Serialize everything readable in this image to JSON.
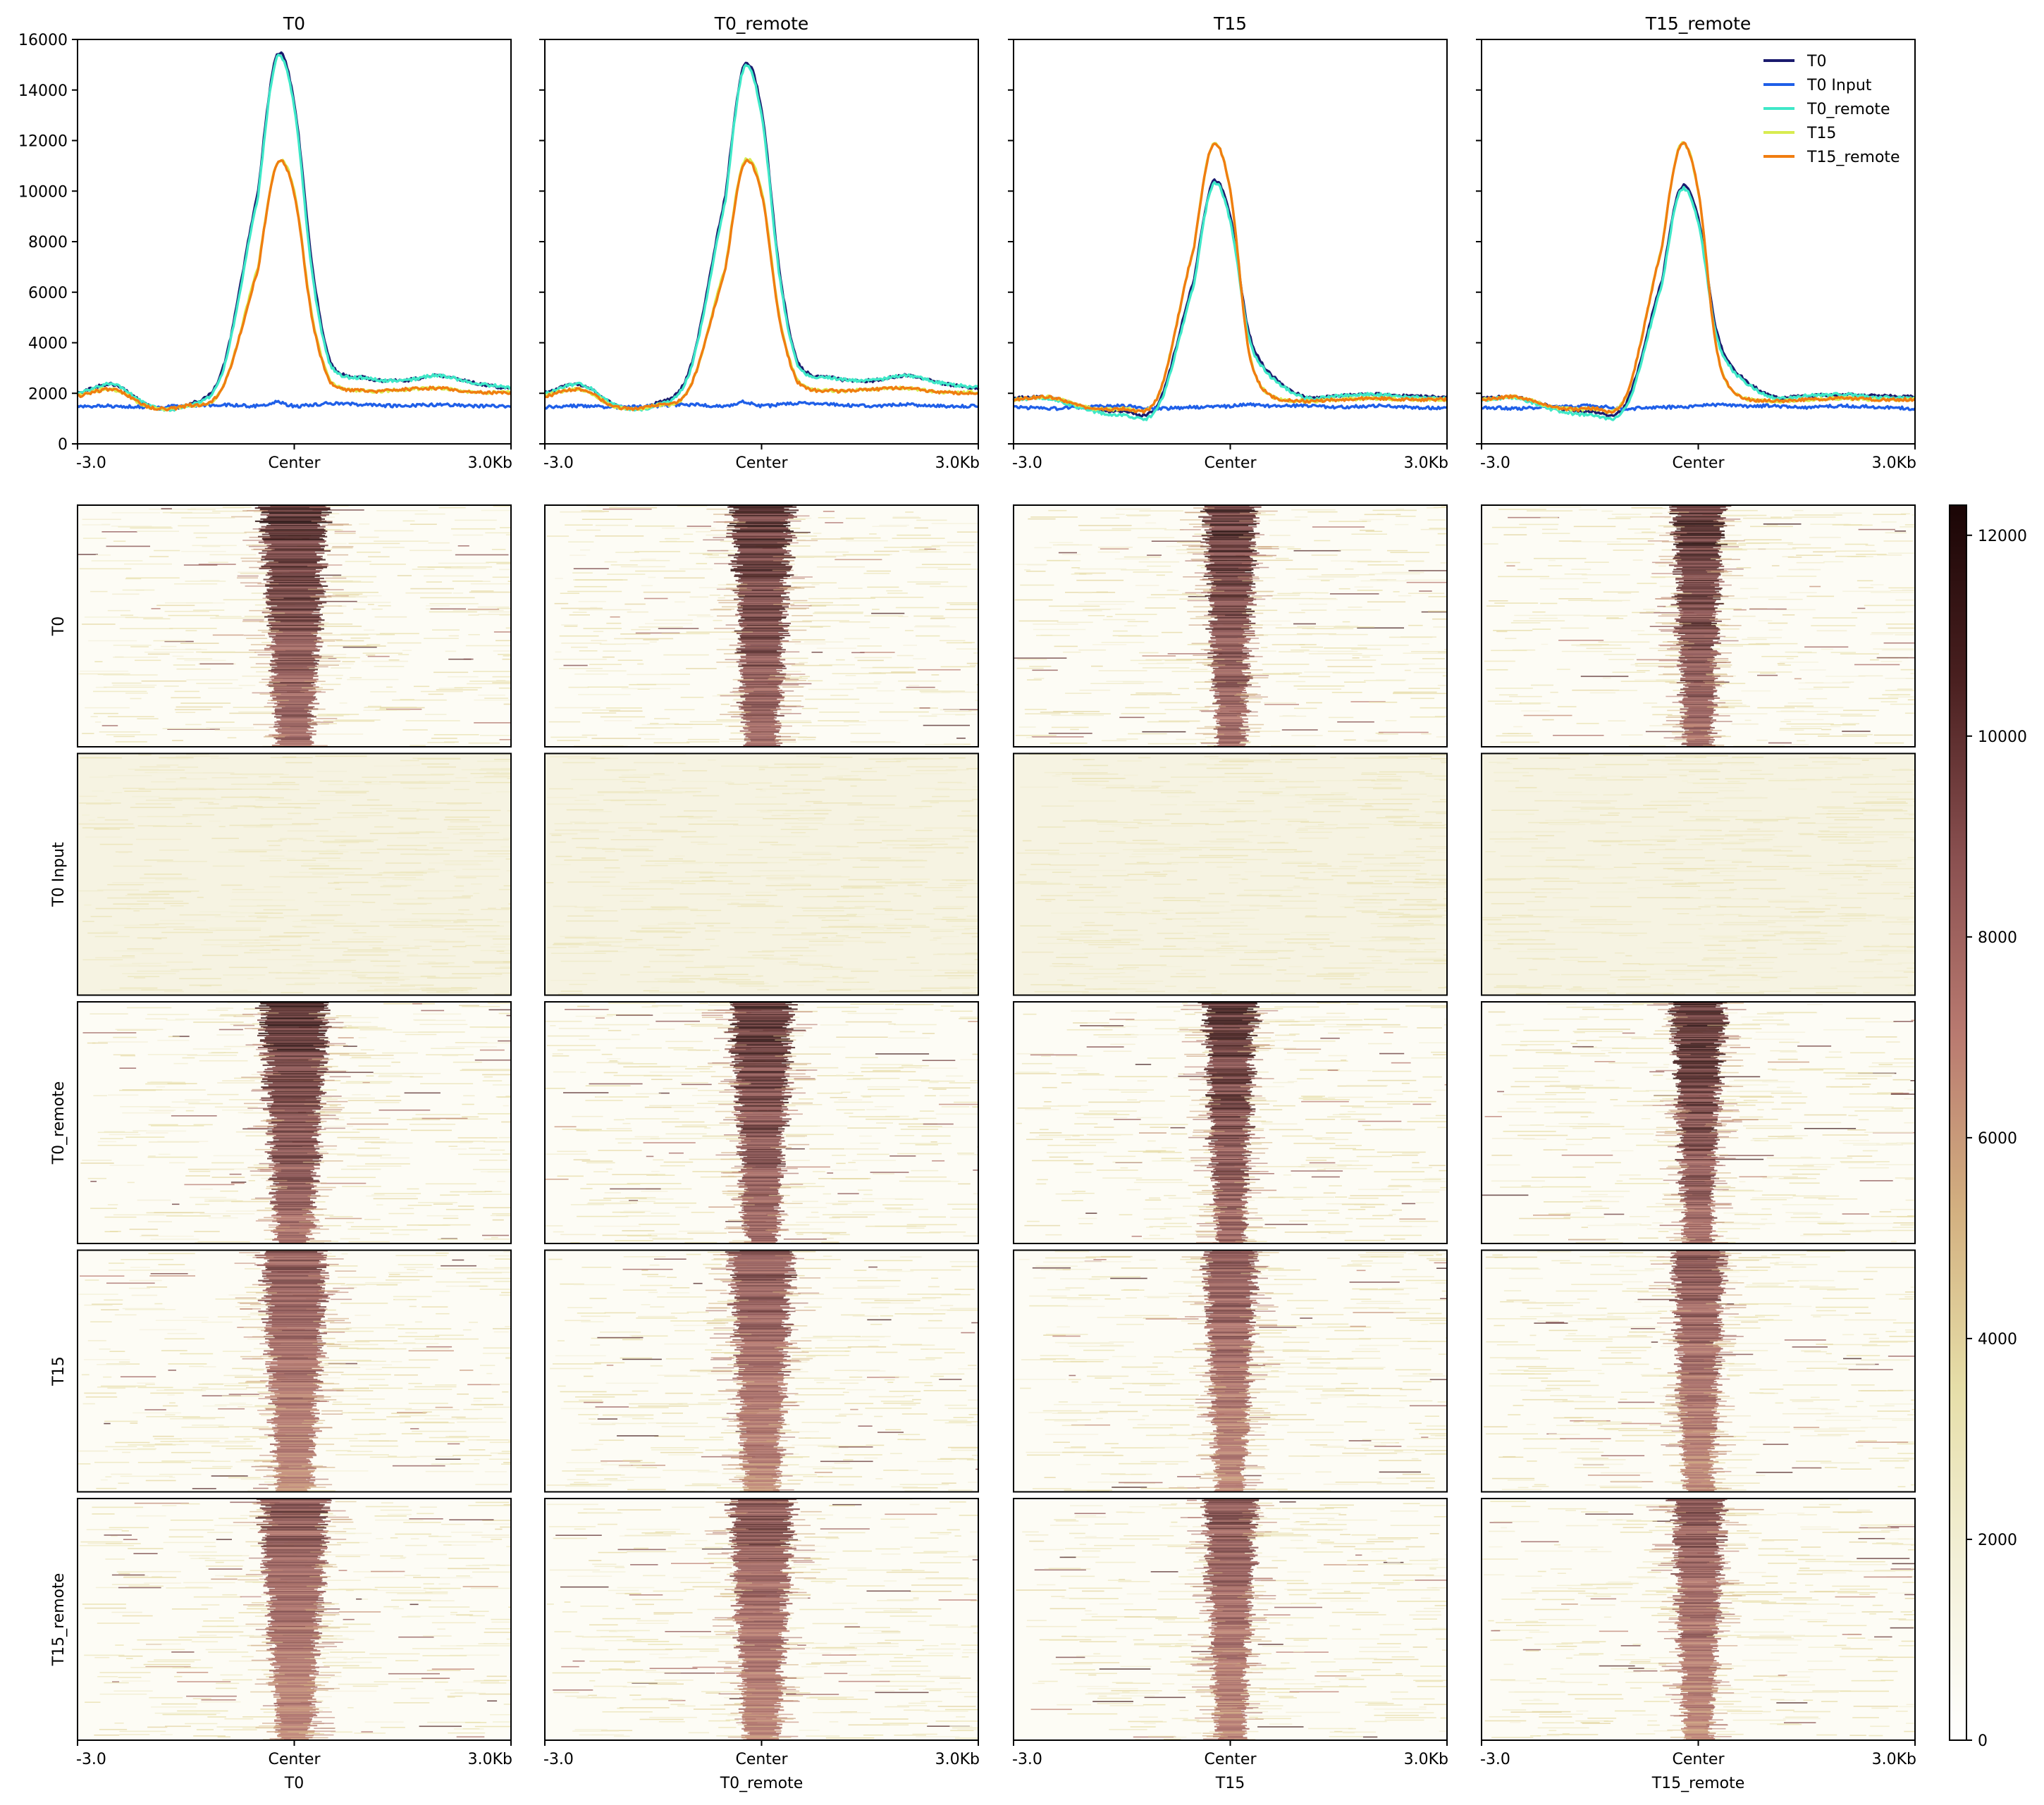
{
  "chart_data": [
    {
      "type": "line",
      "panels": [
        "T0",
        "T0_remote",
        "T15",
        "T15_remote"
      ],
      "x_tick_labels": [
        "-3.0",
        "Center",
        "3.0Kb"
      ],
      "x_range_kb": [
        -3.0,
        3.0
      ],
      "ylim": [
        0,
        16000
      ],
      "y_ticks": [
        0,
        2000,
        4000,
        6000,
        8000,
        10000,
        12000,
        14000,
        16000
      ],
      "legend": {
        "placement": "top-right",
        "entries": [
          "T0",
          "T0 Input",
          "T0_remote",
          "T15",
          "T15_remote"
        ]
      },
      "x_kb": [
        -3.0,
        -2.5,
        -2.0,
        -1.5,
        -1.0,
        -0.5,
        -0.25,
        0.0,
        0.25,
        0.5,
        1.0,
        1.5,
        2.0,
        2.5,
        3.0
      ],
      "series_by_panel": [
        {
          "panel": "T0",
          "series": [
            {
              "name": "T0",
              "color": "#1a1a6e",
              "values": [
                2050,
                2350,
                1500,
                1550,
                2900,
                10000,
                15300,
                13500,
                7000,
                3200,
                2600,
                2500,
                2700,
                2400,
                2200
              ]
            },
            {
              "name": "T0 Input",
              "color": "#1f5fe8",
              "values": [
                1450,
                1500,
                1450,
                1500,
                1550,
                1500,
                1650,
                1500,
                1550,
                1600,
                1550,
                1500,
                1550,
                1500,
                1500
              ]
            },
            {
              "name": "T0_remote",
              "color": "#3fe8c8",
              "values": [
                2000,
                2350,
                1500,
                1500,
                2800,
                9800,
                15200,
                13300,
                6700,
                3100,
                2600,
                2500,
                2700,
                2400,
                2250
              ]
            },
            {
              "name": "T15",
              "color": "#d8ec50",
              "values": [
                1950,
                2150,
                1450,
                1500,
                2200,
                7000,
                11000,
                10000,
                5000,
                2500,
                2100,
                2150,
                2200,
                2050,
                2050
              ]
            },
            {
              "name": "T15_remote",
              "color": "#f07d10",
              "values": [
                1900,
                2150,
                1450,
                1500,
                2200,
                6900,
                11000,
                9900,
                4900,
                2450,
                2100,
                2150,
                2200,
                2050,
                2000
              ]
            }
          ]
        },
        {
          "panel": "T0_remote",
          "series": [
            {
              "name": "T0",
              "color": "#1a1a6e",
              "values": [
                2050,
                2350,
                1500,
                1550,
                2900,
                9800,
                14900,
                13200,
                6800,
                3200,
                2600,
                2500,
                2700,
                2400,
                2200
              ]
            },
            {
              "name": "T0 Input",
              "color": "#1f5fe8",
              "values": [
                1450,
                1500,
                1450,
                1500,
                1550,
                1500,
                1650,
                1500,
                1550,
                1600,
                1550,
                1500,
                1550,
                1500,
                1500
              ]
            },
            {
              "name": "T0_remote",
              "color": "#3fe8c8",
              "values": [
                2000,
                2350,
                1500,
                1500,
                2800,
                9600,
                14800,
                13000,
                6600,
                3100,
                2600,
                2500,
                2700,
                2400,
                2250
              ]
            },
            {
              "name": "T15",
              "color": "#d8ec50",
              "values": [
                1950,
                2150,
                1450,
                1500,
                2200,
                7000,
                11100,
                10000,
                5000,
                2500,
                2100,
                2150,
                2200,
                2050,
                2050
              ]
            },
            {
              "name": "T15_remote",
              "color": "#f07d10",
              "values": [
                1900,
                2150,
                1450,
                1500,
                2200,
                6900,
                11000,
                9900,
                4900,
                2450,
                2100,
                2150,
                2200,
                2050,
                2000
              ]
            }
          ]
        },
        {
          "panel": "T15",
          "series": [
            {
              "name": "T0",
              "color": "#1a1a6e",
              "values": [
                1800,
                1850,
                1450,
                1300,
                1600,
                6500,
                10300,
                9000,
                4500,
                2900,
                1900,
                1900,
                1950,
                1900,
                1850
              ]
            },
            {
              "name": "T0 Input",
              "color": "#1f5fe8",
              "values": [
                1450,
                1400,
                1450,
                1500,
                1400,
                1450,
                1450,
                1500,
                1550,
                1500,
                1500,
                1450,
                1500,
                1450,
                1400
              ]
            },
            {
              "name": "T0_remote",
              "color": "#3fe8c8",
              "values": [
                1750,
                1800,
                1350,
                1150,
                1450,
                6300,
                10200,
                8800,
                4300,
                2800,
                1850,
                1900,
                1950,
                1850,
                1800
              ]
            },
            {
              "name": "T15",
              "color": "#d8ec50",
              "values": [
                1750,
                1850,
                1450,
                1400,
                1900,
                7800,
                11800,
                10000,
                3800,
                2000,
                1700,
                1750,
                1800,
                1750,
                1750
              ]
            },
            {
              "name": "T15_remote",
              "color": "#f07d10",
              "values": [
                1750,
                1850,
                1450,
                1400,
                1900,
                7800,
                11800,
                10000,
                3800,
                2000,
                1700,
                1750,
                1800,
                1750,
                1750
              ]
            }
          ]
        },
        {
          "panel": "T15_remote",
          "series": [
            {
              "name": "T0",
              "color": "#1a1a6e",
              "values": [
                1800,
                1850,
                1450,
                1300,
                1600,
                6500,
                10100,
                8900,
                4500,
                2900,
                1900,
                1900,
                1950,
                1900,
                1850
              ]
            },
            {
              "name": "T0 Input",
              "color": "#1f5fe8",
              "values": [
                1450,
                1400,
                1450,
                1500,
                1400,
                1450,
                1450,
                1500,
                1550,
                1500,
                1500,
                1450,
                1500,
                1450,
                1400
              ]
            },
            {
              "name": "T0_remote",
              "color": "#3fe8c8",
              "values": [
                1750,
                1800,
                1350,
                1150,
                1450,
                6300,
                10000,
                8700,
                4300,
                2800,
                1850,
                1900,
                1950,
                1850,
                1800
              ]
            },
            {
              "name": "T15",
              "color": "#d8ec50",
              "values": [
                1750,
                1850,
                1450,
                1400,
                1900,
                7800,
                11800,
                10000,
                3800,
                2000,
                1700,
                1750,
                1800,
                1750,
                1750
              ]
            },
            {
              "name": "T15_remote",
              "color": "#f07d10",
              "values": [
                1750,
                1850,
                1450,
                1400,
                1900,
                7800,
                11800,
                10000,
                3800,
                2000,
                1700,
                1750,
                1800,
                1750,
                1750
              ]
            }
          ]
        }
      ]
    },
    {
      "type": "heatmap",
      "rows": [
        "T0",
        "T0 Input",
        "T0_remote",
        "T15",
        "T15_remote"
      ],
      "columns": [
        "T0",
        "T0_remote",
        "T15",
        "T15_remote"
      ],
      "x_tick_labels": [
        "-3.0",
        "Center",
        "3.0Kb"
      ],
      "column_signal_width_kb": [
        0.38,
        0.36,
        0.3,
        0.3
      ],
      "row_intensity": [
        1.0,
        0.0,
        1.0,
        0.85,
        0.85
      ],
      "colorbar": {
        "range": [
          0,
          12300
        ],
        "ticks": [
          0,
          2000,
          4000,
          6000,
          8000,
          10000,
          12000
        ],
        "colors": [
          "#ffffff",
          "#f3f0d8",
          "#e6dea8",
          "#d3b080",
          "#b97a70",
          "#8a5050",
          "#4a2020",
          "#1a0505"
        ]
      }
    }
  ]
}
